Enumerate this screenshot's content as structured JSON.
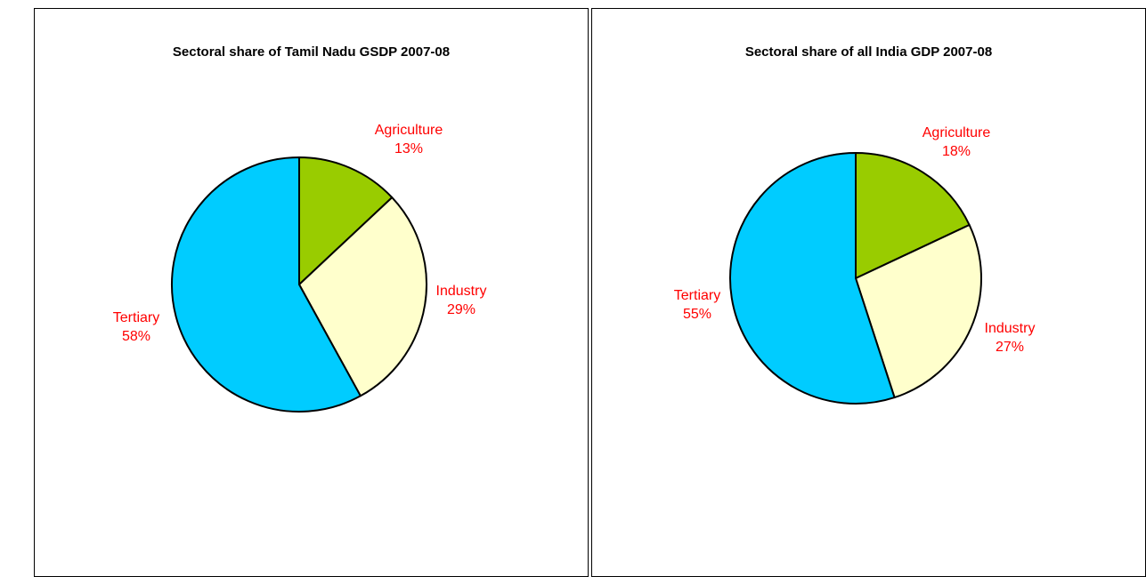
{
  "chart_data": [
    {
      "type": "pie",
      "title": "Sectoral share of Tamil Nadu GSDP 2007-08",
      "start_angle_deg": 0,
      "direction": "clockwise",
      "slices": [
        {
          "label": "Agriculture",
          "value": 13,
          "display": "13%",
          "color": "#99cc00"
        },
        {
          "label": "Industry",
          "value": 29,
          "display": "29%",
          "color": "#ffffcc"
        },
        {
          "label": "Tertiary",
          "value": 58,
          "display": "58%",
          "color": "#00ccff"
        }
      ]
    },
    {
      "type": "pie",
      "title": "Sectoral share of all India GDP 2007-08",
      "start_angle_deg": 0,
      "direction": "clockwise",
      "slices": [
        {
          "label": "Agriculture",
          "value": 18,
          "display": "18%",
          "color": "#99cc00"
        },
        {
          "label": "Industry",
          "value": 27,
          "display": "27%",
          "color": "#ffffcc"
        },
        {
          "label": "Tertiary",
          "value": 55,
          "display": "55%",
          "color": "#00ccff"
        }
      ]
    }
  ]
}
